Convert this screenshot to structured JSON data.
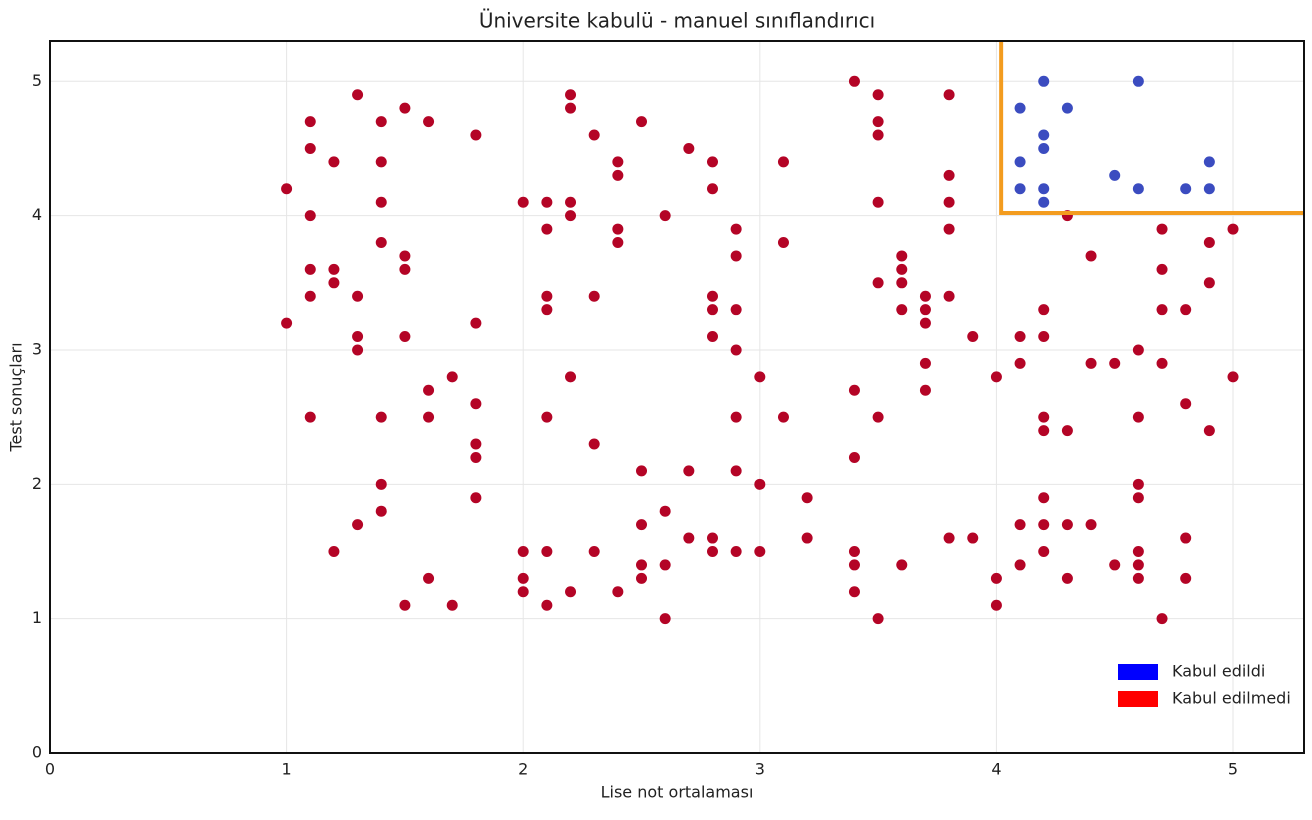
{
  "chart_data": {
    "type": "scatter",
    "title": "Üniversite kabulü - manuel sınıflandırıcı",
    "xlabel": "Lise not ortalaması",
    "ylabel": "Test sonuçları",
    "xlim": [
      0,
      5.3
    ],
    "ylim": [
      0,
      5.3
    ],
    "xticks": [
      0,
      1,
      2,
      3,
      4,
      5
    ],
    "yticks": [
      0,
      1,
      2,
      3,
      4,
      5
    ],
    "grid": true,
    "legend": {
      "position": "lower right",
      "colors": [
        "#0000ff",
        "#ff0000"
      ]
    },
    "boundary": {
      "x": 4.02,
      "y": 4.02,
      "color": "#f39c1f"
    },
    "series": [
      {
        "name": "Kabul edildi",
        "color": "#3b4cc0",
        "x": [
          4.1,
          4.2,
          4.3,
          4.6,
          4.2,
          4.2,
          4.1,
          4.9,
          4.5,
          4.1,
          4.2,
          4.6,
          4.8,
          4.9,
          4.2
        ],
        "values": [
          4.8,
          5.0,
          4.8,
          5.0,
          4.6,
          4.5,
          4.4,
          4.4,
          4.3,
          4.2,
          4.2,
          4.2,
          4.2,
          4.2,
          4.1
        ]
      },
      {
        "name": "Kabul edilmedi",
        "color": "#b40426",
        "x": [
          1.0,
          1.0,
          1.1,
          1.1,
          1.1,
          1.1,
          1.1,
          1.1,
          1.2,
          1.2,
          1.2,
          1.2,
          1.3,
          1.3,
          1.3,
          1.3,
          1.3,
          1.4,
          1.4,
          1.4,
          1.4,
          1.4,
          1.4,
          1.4,
          1.5,
          1.5,
          1.5,
          1.5,
          1.5,
          1.6,
          1.6,
          1.6,
          1.6,
          1.7,
          1.7,
          1.8,
          1.8,
          1.8,
          1.8,
          1.8,
          1.8,
          2.0,
          2.0,
          2.0,
          2.0,
          2.1,
          2.1,
          2.1,
          2.1,
          2.1,
          2.1,
          2.1,
          2.2,
          2.2,
          2.2,
          2.2,
          2.2,
          2.2,
          2.3,
          2.3,
          2.3,
          2.3,
          2.4,
          2.4,
          2.4,
          2.4,
          2.4,
          2.5,
          2.5,
          2.5,
          2.5,
          2.5,
          2.6,
          2.6,
          2.6,
          2.6,
          2.7,
          2.7,
          2.7,
          2.8,
          2.8,
          2.8,
          2.8,
          2.8,
          2.8,
          2.8,
          2.9,
          2.9,
          2.9,
          2.9,
          2.9,
          2.9,
          2.9,
          3.0,
          3.0,
          3.0,
          3.1,
          3.1,
          3.1,
          3.2,
          3.2,
          3.4,
          3.4,
          3.4,
          3.4,
          3.4,
          3.4,
          3.5,
          3.5,
          3.5,
          3.5,
          3.5,
          3.5,
          3.5,
          3.6,
          3.6,
          3.6,
          3.6,
          3.6,
          3.7,
          3.7,
          3.7,
          3.7,
          3.7,
          3.8,
          3.8,
          3.8,
          3.8,
          3.8,
          3.8,
          3.9,
          3.9,
          4.0,
          4.0,
          4.0,
          4.1,
          4.1,
          4.1,
          4.1,
          4.2,
          4.2,
          4.2,
          4.2,
          4.2,
          4.2,
          4.2,
          4.3,
          4.3,
          4.3,
          4.3,
          4.4,
          4.4,
          4.4,
          4.5,
          4.5,
          4.6,
          4.6,
          4.6,
          4.6,
          4.6,
          4.6,
          4.6,
          4.7,
          4.7,
          4.7,
          4.7,
          4.7,
          4.8,
          4.8,
          4.8,
          4.8,
          4.9,
          4.9,
          4.9,
          5.0,
          5.0
        ],
        "values": [
          4.2,
          3.2,
          4.7,
          4.5,
          4.0,
          3.6,
          3.4,
          2.5,
          4.4,
          3.6,
          3.5,
          1.5,
          4.9,
          3.4,
          3.1,
          3.0,
          1.7,
          4.7,
          4.4,
          4.1,
          3.8,
          2.5,
          2.0,
          1.8,
          4.8,
          3.7,
          3.6,
          3.1,
          1.1,
          4.7,
          2.7,
          2.5,
          1.3,
          2.8,
          1.1,
          4.6,
          3.2,
          2.6,
          2.3,
          2.2,
          1.9,
          4.1,
          1.5,
          1.3,
          1.2,
          4.1,
          3.9,
          3.4,
          3.3,
          2.5,
          1.5,
          1.1,
          4.9,
          4.8,
          4.1,
          4.0,
          2.8,
          1.2,
          4.6,
          3.4,
          2.3,
          1.5,
          4.4,
          4.3,
          3.9,
          3.8,
          1.2,
          4.7,
          2.1,
          1.7,
          1.4,
          1.3,
          4.0,
          1.8,
          1.4,
          1.0,
          4.5,
          2.1,
          1.6,
          4.4,
          4.2,
          3.4,
          3.3,
          3.1,
          1.6,
          1.5,
          3.9,
          3.7,
          3.3,
          3.0,
          2.5,
          2.1,
          1.5,
          2.8,
          2.0,
          1.5,
          4.4,
          3.8,
          2.5,
          1.9,
          1.6,
          5.0,
          2.7,
          2.2,
          1.5,
          1.4,
          1.2,
          4.9,
          4.7,
          4.6,
          4.1,
          3.5,
          2.5,
          1.0,
          3.7,
          3.6,
          3.5,
          3.3,
          1.4,
          3.4,
          3.3,
          3.2,
          2.9,
          2.7,
          4.9,
          4.3,
          4.1,
          3.9,
          3.4,
          1.6,
          3.1,
          1.6,
          2.8,
          1.3,
          1.1,
          3.1,
          2.9,
          1.7,
          1.4,
          3.3,
          3.1,
          2.5,
          2.4,
          1.9,
          1.7,
          1.5,
          4.0,
          2.4,
          1.7,
          1.3,
          3.7,
          2.9,
          1.7,
          2.9,
          1.4,
          3.0,
          2.5,
          2.0,
          1.9,
          1.5,
          1.4,
          1.3,
          3.9,
          3.6,
          3.3,
          2.9,
          1.0,
          3.3,
          2.6,
          1.6,
          1.3,
          3.8,
          3.5,
          2.4,
          3.9,
          2.8
        ]
      }
    ]
  }
}
